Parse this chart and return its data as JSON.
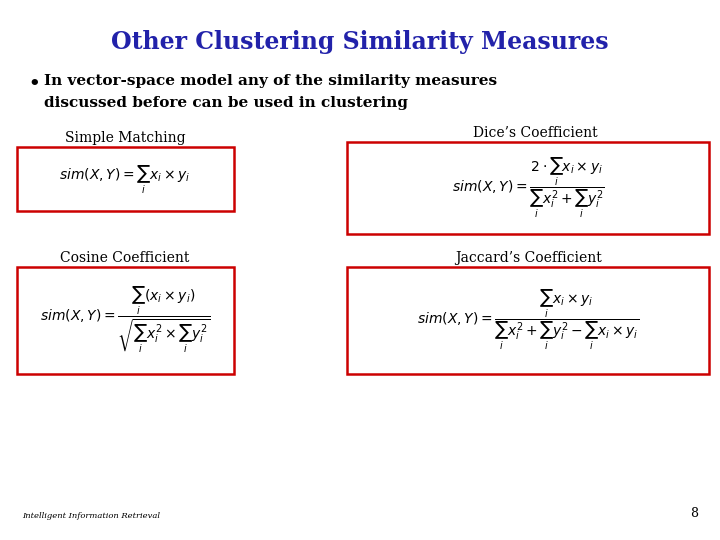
{
  "title": "Other Clustering Similarity Measures",
  "title_color": "#2222AA",
  "title_fontsize": 17,
  "bullet_text_line1": "In vector-space model any of the similarity measures",
  "bullet_text_line2": "discussed before can be used in clustering",
  "bullet_fontsize": 11,
  "bullet_color": "#000000",
  "label_simple": "Simple Matching",
  "label_dice": "Dice’s Coefficient",
  "label_cosine": "Cosine Coefficient",
  "label_jaccard": "Jaccard’s Coefficient",
  "label_fontsize": 10,
  "formula_simple": "$sim(X,Y) = \\sum_{i} x_i \\times y_i$",
  "formula_dice": "$sim(X,Y) = \\dfrac{2 \\cdot \\sum_{i} x_i \\times y_i}{\\sum_{i} x_i^2 + \\sum_{i} y_i^2}$",
  "formula_cosine": "$sim(X,Y) = \\dfrac{\\sum_{i}(x_i \\times y_i)}{\\sqrt{\\sum_{i} x_i^2 \\times \\sum_{i} y_i^2}}$",
  "formula_jaccard": "$sim(X,Y) = \\dfrac{\\sum_{i} x_i \\times y_i}{\\sum_{i} x_i^2 + \\sum_{i} y_i^2 - \\sum_{i} x_i \\times y_i}$",
  "formula_fontsize": 10,
  "box_color": "#CC0000",
  "background_color": "#FFFFFF",
  "footer_text": "Intelligent Information Retrieval",
  "footer_fontsize": 6,
  "page_number": "8",
  "page_fontsize": 9
}
